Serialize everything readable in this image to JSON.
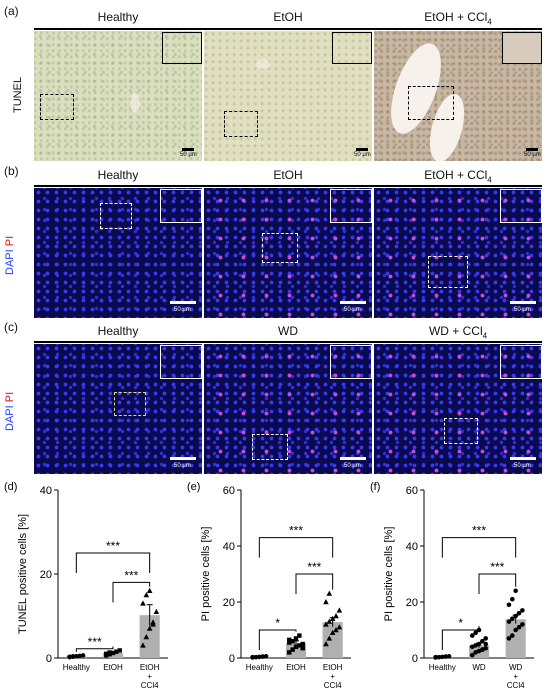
{
  "panel_a": {
    "label": "(a)",
    "row_label": "TUNEL",
    "titles": [
      "Healthy",
      "EtOH",
      "EtOH + CCl"
    ],
    "subscript": "4",
    "scale": "50 µm"
  },
  "panel_b": {
    "label": "(b)",
    "row_label_dapi": "DAPI",
    "row_label_pi": "PI",
    "titles": [
      "Healthy",
      "EtOH",
      "EtOH + CCl"
    ],
    "subscript": "4",
    "scale": "50 µm"
  },
  "panel_c": {
    "label": "(c)",
    "row_label_dapi": "DAPI",
    "row_label_pi": "PI",
    "titles": [
      "Healthy",
      "WD",
      "WD + CCl"
    ],
    "subscript": "4",
    "scale": "50 µm"
  },
  "colors": {
    "bar": "#b0b0b0",
    "dapi": "#1e3cff",
    "pi": "#e01010"
  },
  "chart_data": [
    {
      "label": "(d)",
      "type": "bar",
      "ylabel": "TUNEL positive cells [%]",
      "categories": [
        "Healthy",
        "EtOH",
        "EtOH + CCl4"
      ],
      "category_lines": [
        [
          "Healthy"
        ],
        [
          "EtOH"
        ],
        [
          "EtOH",
          "+",
          "CCl4"
        ]
      ],
      "values": [
        0.4,
        1.2,
        10.2
      ],
      "errors": [
        0.1,
        0.3,
        2.5
      ],
      "ylim": [
        0,
        40
      ],
      "yticks": [
        0,
        20,
        40
      ],
      "markers": [
        "circle",
        "square",
        "triangle"
      ],
      "points": [
        [
          0.2,
          0.3,
          0.4,
          0.5,
          0.6,
          0.3,
          0.4
        ],
        [
          0.6,
          0.9,
          1.2,
          1.5,
          1.8,
          1.0,
          1.3
        ],
        [
          3,
          5,
          7,
          8.5,
          11,
          13,
          15,
          16,
          8
        ]
      ],
      "significance": [
        {
          "from": 0,
          "to": 1,
          "label": "***",
          "y": 2.2
        },
        {
          "from": 0,
          "to": 2,
          "label": "***",
          "y": 25
        },
        {
          "from": 1,
          "to": 2,
          "label": "***",
          "y": 18
        }
      ]
    },
    {
      "label": "(e)",
      "type": "bar",
      "ylabel": "PI positive cells [%]",
      "categories": [
        "Healthy",
        "EtOH",
        "EtOH + CCl4"
      ],
      "category_lines": [
        [
          "Healthy"
        ],
        [
          "EtOH"
        ],
        [
          "EtOH",
          "+",
          "CCl4"
        ]
      ],
      "values": [
        0.4,
        5.2,
        12.8
      ],
      "errors": [
        0.1,
        0.9,
        1.6
      ],
      "ylim": [
        0,
        60
      ],
      "yticks": [
        0,
        20,
        40,
        60
      ],
      "markers": [
        "circle",
        "square",
        "triangle"
      ],
      "points": [
        [
          0.2,
          0.3,
          0.4,
          0.5,
          0.6,
          0.3
        ],
        [
          2,
          3,
          4,
          4.5,
          5,
          5.5,
          6,
          7,
          8,
          3.5,
          6.5
        ],
        [
          5,
          7,
          9,
          10,
          11,
          12,
          13,
          14,
          15,
          17,
          20,
          23
        ]
      ],
      "significance": [
        {
          "from": 0,
          "to": 1,
          "label": "*",
          "y": 10
        },
        {
          "from": 0,
          "to": 2,
          "label": "***",
          "y": 43
        },
        {
          "from": 1,
          "to": 2,
          "label": "***",
          "y": 30
        }
      ]
    },
    {
      "label": "(f)",
      "type": "bar",
      "ylabel": "PI positive cells [%]",
      "categories": [
        "Healthy",
        "WD",
        "WD + CCl4"
      ],
      "category_lines": [
        [
          "Healthy"
        ],
        [
          "WD"
        ],
        [
          "WD",
          "+",
          "CCl4"
        ]
      ],
      "values": [
        0.4,
        4.5,
        13.8
      ],
      "errors": [
        0.1,
        0.8,
        1.5
      ],
      "ylim": [
        0,
        60
      ],
      "yticks": [
        0,
        20,
        40,
        60
      ],
      "markers": [
        "circle",
        "circle",
        "circle"
      ],
      "points": [
        [
          0.2,
          0.3,
          0.4,
          0.5,
          0.6,
          0.3
        ],
        [
          1,
          2,
          2.5,
          3,
          3.5,
          4,
          4.5,
          5,
          6,
          7,
          8,
          9,
          10,
          3,
          5
        ],
        [
          7,
          8,
          10,
          11,
          12,
          13,
          14,
          15,
          16,
          17,
          19,
          21,
          24
        ]
      ],
      "significance": [
        {
          "from": 0,
          "to": 1,
          "label": "*",
          "y": 10
        },
        {
          "from": 0,
          "to": 2,
          "label": "***",
          "y": 43
        },
        {
          "from": 1,
          "to": 2,
          "label": "***",
          "y": 30
        }
      ]
    }
  ]
}
